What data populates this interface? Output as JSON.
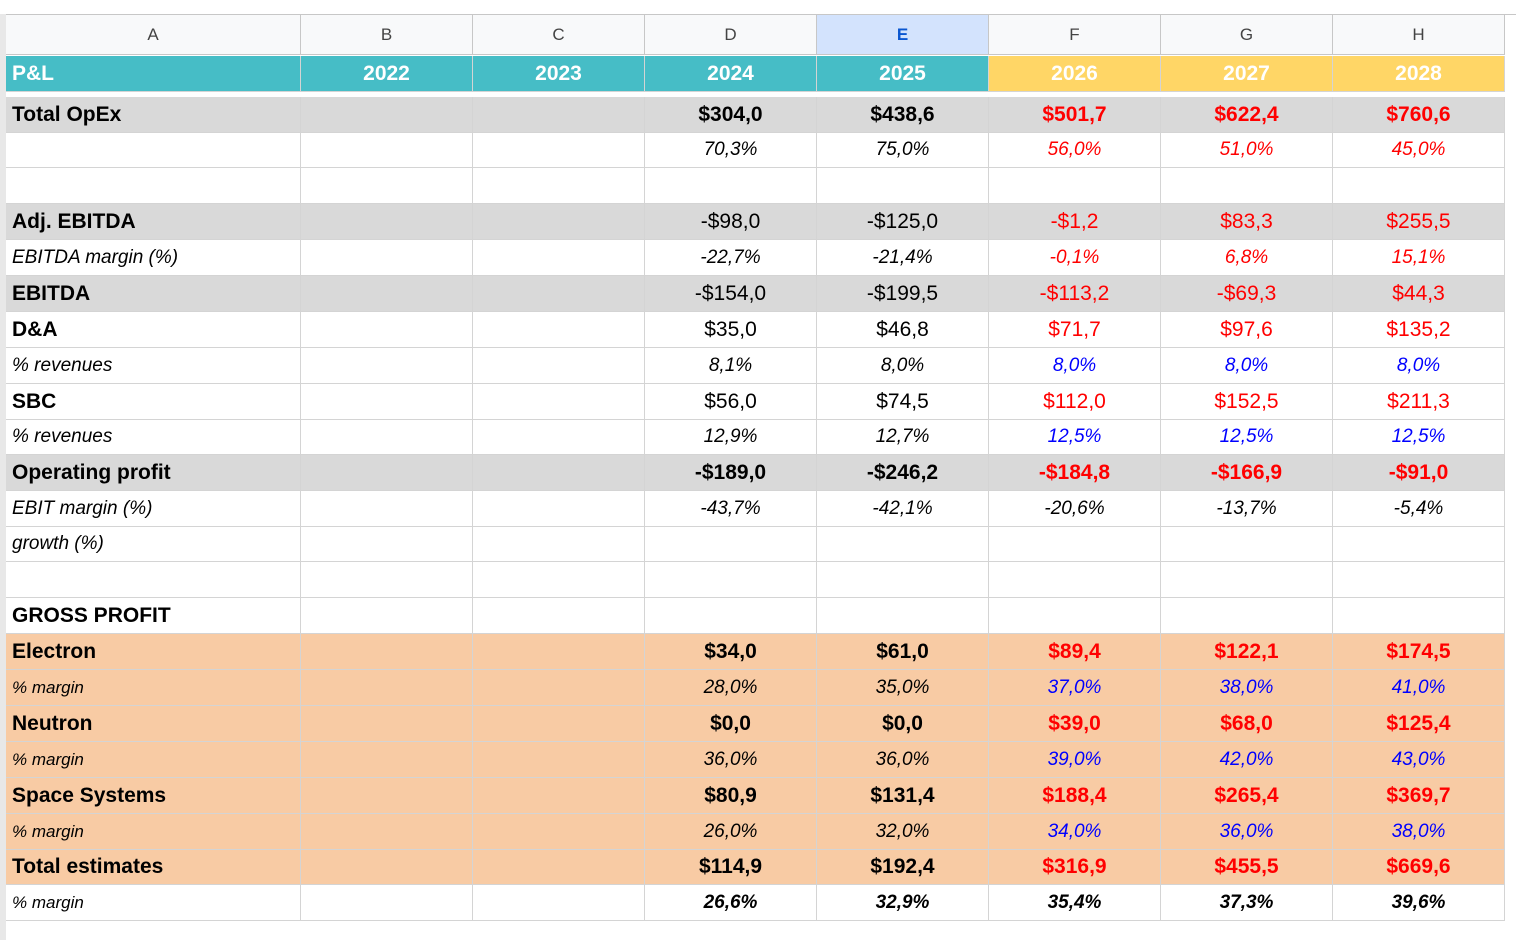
{
  "columns": [
    "A",
    "B",
    "C",
    "D",
    "E",
    "F",
    "G",
    "H"
  ],
  "selected_column": "E",
  "rows": [
    {
      "cells": [
        "P&L",
        "2022",
        "2023",
        "2024",
        "2025",
        "2026",
        "2027",
        "2028"
      ]
    },
    {
      "cells": [
        "Total OpEx",
        "",
        "",
        "$304,0",
        "$438,6",
        "$501,7",
        "$622,4",
        "$760,6"
      ]
    },
    {
      "cells": [
        "",
        "",
        "",
        "70,3%",
        "75,0%",
        "56,0%",
        "51,0%",
        "45,0%"
      ]
    },
    {
      "cells": [
        "",
        "",
        "",
        "",
        "",
        "",
        "",
        ""
      ]
    },
    {
      "cells": [
        "Adj. EBITDA",
        "",
        "",
        "-$98,0",
        "-$125,0",
        "-$1,2",
        "$83,3",
        "$255,5"
      ]
    },
    {
      "cells": [
        "EBITDA margin (%)",
        "",
        "",
        "-22,7%",
        "-21,4%",
        "-0,1%",
        "6,8%",
        "15,1%"
      ]
    },
    {
      "cells": [
        "EBITDA",
        "",
        "",
        "-$154,0",
        "-$199,5",
        "-$113,2",
        "-$69,3",
        "$44,3"
      ]
    },
    {
      "cells": [
        "D&A",
        "",
        "",
        "$35,0",
        "$46,8",
        "$71,7",
        "$97,6",
        "$135,2"
      ]
    },
    {
      "cells": [
        "% revenues",
        "",
        "",
        "8,1%",
        "8,0%",
        "8,0%",
        "8,0%",
        "8,0%"
      ]
    },
    {
      "cells": [
        "SBC",
        "",
        "",
        "$56,0",
        "$74,5",
        "$112,0",
        "$152,5",
        "$211,3"
      ]
    },
    {
      "cells": [
        "% revenues",
        "",
        "",
        "12,9%",
        "12,7%",
        "12,5%",
        "12,5%",
        "12,5%"
      ]
    },
    {
      "cells": [
        "Operating profit",
        "",
        "",
        "-$189,0",
        "-$246,2",
        "-$184,8",
        "-$166,9",
        "-$91,0"
      ]
    },
    {
      "cells": [
        "EBIT margin (%)",
        "",
        "",
        "-43,7%",
        "-42,1%",
        "-20,6%",
        "-13,7%",
        "-5,4%"
      ]
    },
    {
      "cells": [
        "growth (%)",
        "",
        "",
        "",
        "",
        "",
        "",
        ""
      ]
    },
    {
      "cells": [
        "",
        "",
        "",
        "",
        "",
        "",
        "",
        ""
      ]
    },
    {
      "cells": [
        "GROSS PROFIT",
        "",
        "",
        "",
        "",
        "",
        "",
        ""
      ]
    },
    {
      "cells": [
        "Electron",
        "",
        "",
        "$34,0",
        "$61,0",
        "$89,4",
        "$122,1",
        "$174,5"
      ]
    },
    {
      "cells": [
        "% margin",
        "",
        "",
        "28,0%",
        "35,0%",
        "37,0%",
        "38,0%",
        "41,0%"
      ]
    },
    {
      "cells": [
        "Neutron",
        "",
        "",
        "$0,0",
        "$0,0",
        "$39,0",
        "$68,0",
        "$125,4"
      ]
    },
    {
      "cells": [
        "% margin",
        "",
        "",
        "36,0%",
        "36,0%",
        "39,0%",
        "42,0%",
        "43,0%"
      ]
    },
    {
      "cells": [
        "Space Systems",
        "",
        "",
        "$80,9",
        "$131,4",
        "$188,4",
        "$265,4",
        "$369,7"
      ]
    },
    {
      "cells": [
        "% margin",
        "",
        "",
        "26,0%",
        "32,0%",
        "34,0%",
        "36,0%",
        "38,0%"
      ]
    },
    {
      "cells": [
        "Total estimates",
        "",
        "",
        "$114,9",
        "$192,4",
        "$316,9",
        "$455,5",
        "$669,6"
      ]
    },
    {
      "cells": [
        "% margin",
        "",
        "",
        "26,6%",
        "32,9%",
        "35,4%",
        "37,3%",
        "39,6%"
      ]
    }
  ],
  "colors": {
    "header_teal": "#46bdc6",
    "header_yellow": "#ffd666",
    "row_grey": "#d9d9d9",
    "row_orange": "#f8cba4",
    "estimate_red": "#ff0000",
    "input_blue": "#0000ff",
    "selected_col_header": "#d3e3fd"
  }
}
